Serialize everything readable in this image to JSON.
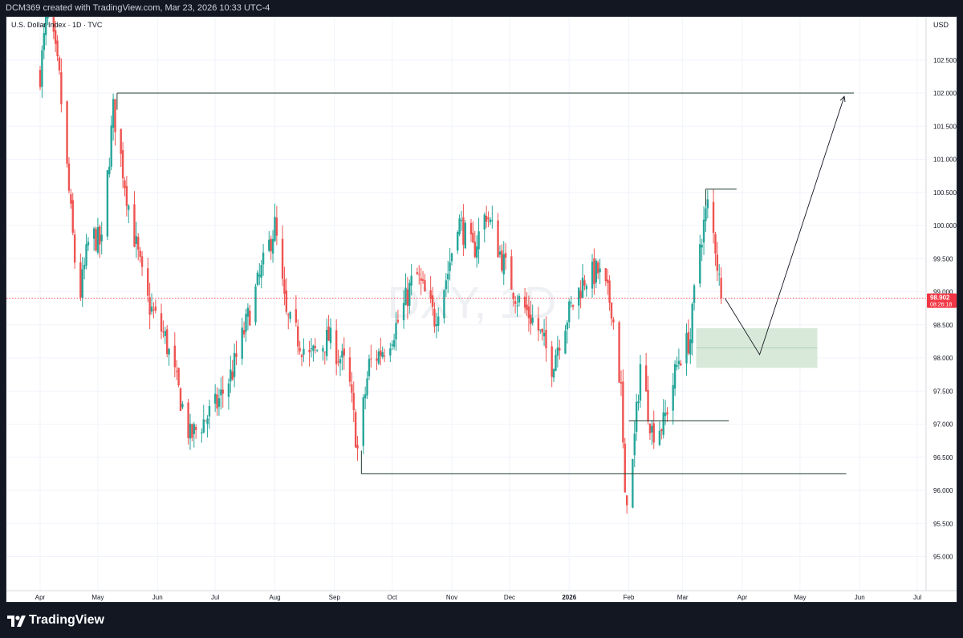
{
  "header": {
    "credit": "DCM369 created with TradingView.com, Mar 23, 2026 10:33 UTC-4"
  },
  "chart_title": "U.S. Dollar Index · 1D · TVC",
  "currency_label": "USD",
  "price_badge": {
    "price": "98.902",
    "countdown": "08:26:18"
  },
  "watermark": "DXY, 1D",
  "brand": {
    "name": "TradingView"
  },
  "colors": {
    "up": "#26a69a",
    "down": "#ef5350",
    "price_line": "#f23645",
    "drawing": "#1f3d2e",
    "zone": "#c8dfc9",
    "background": "#ffffff"
  },
  "chart_data": {
    "type": "candlestick",
    "title": "U.S. Dollar Index · 1D · TVC",
    "y_ticks": [
      "102.500",
      "102.000",
      "101.500",
      "101.000",
      "100.500",
      "100.000",
      "99.500",
      "99.000",
      "98.500",
      "98.000",
      "97.500",
      "97.000",
      "96.500",
      "96.000",
      "95.500",
      "95.000"
    ],
    "ylim": [
      94.6,
      103.3
    ],
    "x_ticks": [
      "Apr",
      "May",
      "Jun",
      "Jul",
      "Aug",
      "Sep",
      "Oct",
      "Nov",
      "Dec",
      "2026",
      "Feb",
      "Mar",
      "Apr",
      "May",
      "Jun",
      "Jul"
    ],
    "x_tick_days": [
      0,
      30,
      61,
      91,
      122,
      153,
      183,
      214,
      244,
      275,
      306,
      334,
      365,
      395,
      426,
      456
    ],
    "current_price": 98.902,
    "anchors": [
      {
        "day": 0,
        "price": 102.3
      },
      {
        "day": 4,
        "price": 103.3
      },
      {
        "day": 10,
        "price": 102.2
      },
      {
        "day": 15,
        "price": 100.5
      },
      {
        "day": 20,
        "price": 98.8
      },
      {
        "day": 26,
        "price": 99.9
      },
      {
        "day": 32,
        "price": 99.7
      },
      {
        "day": 38,
        "price": 101.75
      },
      {
        "day": 46,
        "price": 100.3
      },
      {
        "day": 55,
        "price": 98.9
      },
      {
        "day": 65,
        "price": 98.3
      },
      {
        "day": 78,
        "price": 96.8
      },
      {
        "day": 92,
        "price": 97.3
      },
      {
        "day": 100,
        "price": 97.8
      },
      {
        "day": 110,
        "price": 98.8
      },
      {
        "day": 122,
        "price": 100.0
      },
      {
        "day": 128,
        "price": 98.6
      },
      {
        "day": 140,
        "price": 98.0
      },
      {
        "day": 150,
        "price": 98.3
      },
      {
        "day": 160,
        "price": 97.8
      },
      {
        "day": 165,
        "price": 96.6
      },
      {
        "day": 171,
        "price": 97.9
      },
      {
        "day": 180,
        "price": 98.2
      },
      {
        "day": 187,
        "price": 98.6
      },
      {
        "day": 195,
        "price": 99.3
      },
      {
        "day": 205,
        "price": 98.6
      },
      {
        "day": 212,
        "price": 99.3
      },
      {
        "day": 217,
        "price": 100.1
      },
      {
        "day": 225,
        "price": 99.6
      },
      {
        "day": 232,
        "price": 100.2
      },
      {
        "day": 240,
        "price": 99.5
      },
      {
        "day": 248,
        "price": 98.9
      },
      {
        "day": 258,
        "price": 98.5
      },
      {
        "day": 266,
        "price": 97.9
      },
      {
        "day": 272,
        "price": 98.5
      },
      {
        "day": 283,
        "price": 99.2
      },
      {
        "day": 290,
        "price": 99.3
      },
      {
        "day": 297,
        "price": 98.8
      },
      {
        "day": 302,
        "price": 97.5
      },
      {
        "day": 304,
        "price": 95.8
      },
      {
        "day": 308,
        "price": 96.4
      },
      {
        "day": 312,
        "price": 97.9
      },
      {
        "day": 318,
        "price": 96.9
      },
      {
        "day": 324,
        "price": 97.0
      },
      {
        "day": 332,
        "price": 98.0
      },
      {
        "day": 338,
        "price": 98.3
      },
      {
        "day": 342,
        "price": 99.6
      },
      {
        "day": 347,
        "price": 100.3
      },
      {
        "day": 351,
        "price": 99.7
      },
      {
        "day": 354,
        "price": 98.902
      }
    ],
    "levels": [
      {
        "price": 102.0,
        "from_day": 40,
        "to_day": 423
      },
      {
        "price": 96.25,
        "from_day": 167,
        "to_day": 419
      },
      {
        "price": 100.55,
        "from_day": 346,
        "to_day": 362
      },
      {
        "price": 97.05,
        "from_day": 306,
        "to_day": 358
      }
    ],
    "zone": {
      "from_day": 341,
      "to_day": 404,
      "top": 98.45,
      "bottom": 97.85,
      "mid": 98.15
    },
    "projection": [
      {
        "day": 356,
        "price": 98.9
      },
      {
        "day": 374,
        "price": 98.05
      },
      {
        "day": 418,
        "price": 101.95
      }
    ]
  }
}
